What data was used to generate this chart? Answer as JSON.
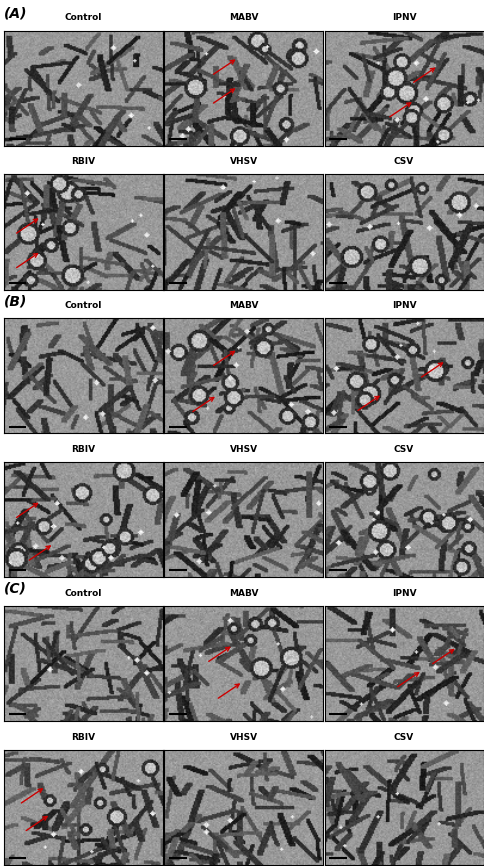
{
  "panels": [
    {
      "label": "(A)",
      "rows": [
        {
          "sublabels": [
            "Control",
            "MABV",
            "IPNV"
          ],
          "seeds": [
            1,
            2,
            3
          ],
          "noise": [
            0.25,
            0.55,
            0.5
          ],
          "arrows": [
            [],
            [
              [
                0.45,
                0.5
              ],
              [
                0.45,
                0.75
              ]
            ],
            [
              [
                0.55,
                0.38
              ],
              [
                0.7,
                0.68
              ]
            ]
          ]
        },
        {
          "sublabels": [
            "RBIV",
            "VHSV",
            "CSV"
          ],
          "seeds": [
            4,
            5,
            6
          ],
          "noise": [
            0.55,
            0.3,
            0.45
          ],
          "arrows": [
            [
              [
                0.22,
                0.32
              ],
              [
                0.22,
                0.62
              ]
            ],
            [],
            []
          ]
        }
      ]
    },
    {
      "label": "(B)",
      "rows": [
        {
          "sublabels": [
            "Control",
            "MABV",
            "IPNV"
          ],
          "seeds": [
            7,
            8,
            9
          ],
          "noise": [
            0.3,
            0.65,
            0.5
          ],
          "arrows": [
            [],
            [
              [
                0.32,
                0.32
              ],
              [
                0.45,
                0.72
              ]
            ],
            [
              [
                0.35,
                0.33
              ],
              [
                0.75,
                0.62
              ]
            ]
          ]
        },
        {
          "sublabels": [
            "RBIV",
            "VHSV",
            "CSV"
          ],
          "seeds": [
            10,
            11,
            12
          ],
          "noise": [
            0.75,
            0.35,
            0.65
          ],
          "arrows": [
            [
              [
                0.3,
                0.28
              ],
              [
                0.22,
                0.65
              ]
            ],
            [],
            []
          ]
        }
      ]
    },
    {
      "label": "(C)",
      "rows": [
        {
          "sublabels": [
            "Control",
            "MABV",
            "IPNV"
          ],
          "seeds": [
            13,
            14,
            15
          ],
          "noise": [
            0.2,
            0.38,
            0.3
          ],
          "arrows": [
            [],
            [
              [
                0.48,
                0.33
              ],
              [
                0.42,
                0.65
              ]
            ],
            [
              [
                0.6,
                0.43
              ],
              [
                0.82,
                0.63
              ]
            ]
          ]
        },
        {
          "sublabels": [
            "RBIV",
            "VHSV",
            "CSV"
          ],
          "seeds": [
            16,
            17,
            18
          ],
          "noise": [
            0.38,
            0.28,
            0.28
          ],
          "arrows": [
            [
              [
                0.28,
                0.43
              ],
              [
                0.25,
                0.67
              ]
            ],
            [],
            []
          ]
        }
      ]
    }
  ],
  "panel_label_fontsize": 10,
  "cell_label_fontsize": 6.5,
  "bg_color": "#ffffff",
  "label_color": "#000000",
  "arrow_color": "#cc0000",
  "fig_width": 4.85,
  "fig_height": 8.66
}
